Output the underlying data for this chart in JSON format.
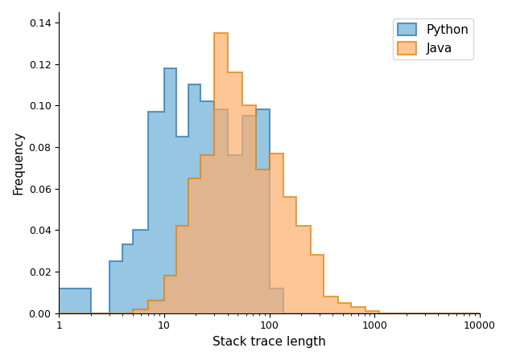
{
  "xlabel": "Stack trace length",
  "ylabel": "Frequency",
  "python_color": "#6aaed6",
  "java_color": "#fdae6b",
  "python_alpha": 0.7,
  "java_alpha": 0.7,
  "python_edgecolor": "#2171b5",
  "java_edgecolor": "#e08000",
  "legend_labels": [
    "Python",
    "Java"
  ],
  "yticks": [
    0.0,
    0.02,
    0.04,
    0.06,
    0.08,
    0.1,
    0.12,
    0.14
  ],
  "ylim": [
    0,
    0.145
  ],
  "bin_edges": [
    1,
    2,
    3,
    4,
    5,
    7,
    10,
    13,
    17,
    22,
    30,
    40,
    55,
    75,
    100,
    135,
    180,
    245,
    330,
    450,
    600,
    820,
    1100,
    1500,
    10000
  ],
  "python_heights": [
    0.012,
    0.0,
    0.025,
    0.033,
    0.04,
    0.097,
    0.118,
    0.085,
    0.11,
    0.102,
    0.098,
    0.076,
    0.095,
    0.098,
    0.012,
    0.0,
    0.0,
    0.0,
    0.0,
    0.0,
    0.0,
    0.0,
    0.0,
    0.0
  ],
  "java_heights": [
    0.0,
    0.0,
    0.0,
    0.0,
    0.002,
    0.006,
    0.018,
    0.042,
    0.065,
    0.076,
    0.135,
    0.116,
    0.1,
    0.069,
    0.077,
    0.056,
    0.042,
    0.028,
    0.008,
    0.005,
    0.003,
    0.001,
    0.0,
    0.0
  ]
}
